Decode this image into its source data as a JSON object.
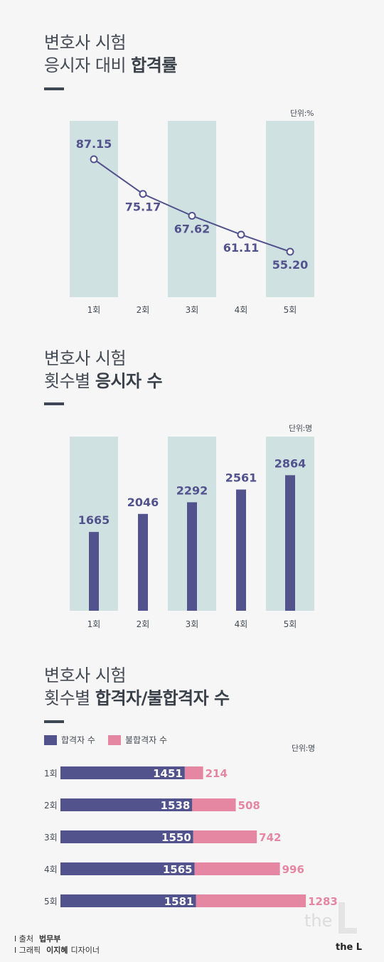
{
  "section1": {
    "title_line1": "변호사 시험",
    "title_line2_plain": "응시자 대비 ",
    "title_line2_bold": "합격률",
    "unit": "단위:%"
  },
  "section2": {
    "title_line1": "변호사 시험",
    "title_line2_plain": "횟수별 ",
    "title_line2_bold": "응시자 수",
    "unit": "단위:명"
  },
  "section3": {
    "title_line1": "변호사 시험",
    "title_line2_plain": "횟수별 ",
    "title_line2_bold": "합격자/불합격자 수",
    "unit": "단위:명",
    "legend_pass": "합격자 수",
    "legend_fail": "불합격자 수"
  },
  "footer": {
    "source_label": "출처",
    "source_value": "법무부",
    "graphic_label": "그래픽",
    "graphic_name": "이지혜",
    "graphic_role": "디자이너"
  },
  "logo": {
    "text": "the L"
  },
  "colors": {
    "navy": "#52528d",
    "pink": "#e586a2",
    "band": "#d0e1e2",
    "background": "#f6f6f6"
  },
  "chart_data": [
    {
      "type": "line",
      "categories": [
        "1회",
        "2회",
        "3회",
        "4회",
        "5회"
      ],
      "series": [
        {
          "values": [
            87.15,
            75.17,
            67.62,
            61.11,
            55.2
          ]
        }
      ],
      "labels": [
        "87.15",
        "75.17",
        "67.62",
        "61.11",
        "55.20"
      ],
      "ylim": [
        0,
        100
      ]
    },
    {
      "type": "bar",
      "categories": [
        "1회",
        "2회",
        "3회",
        "4회",
        "5회"
      ],
      "values": [
        1665,
        2046,
        2292,
        2561,
        2864
      ],
      "ylim": [
        0,
        3500
      ]
    },
    {
      "type": "bar",
      "orientation": "horizontal",
      "stacked": true,
      "categories": [
        "1회",
        "2회",
        "3회",
        "4회",
        "5회"
      ],
      "series": [
        {
          "name": "합격자 수",
          "values": [
            1451,
            1538,
            1550,
            1565,
            1581
          ]
        },
        {
          "name": "불합격자 수",
          "values": [
            214,
            508,
            742,
            996,
            1283
          ]
        }
      ]
    }
  ]
}
